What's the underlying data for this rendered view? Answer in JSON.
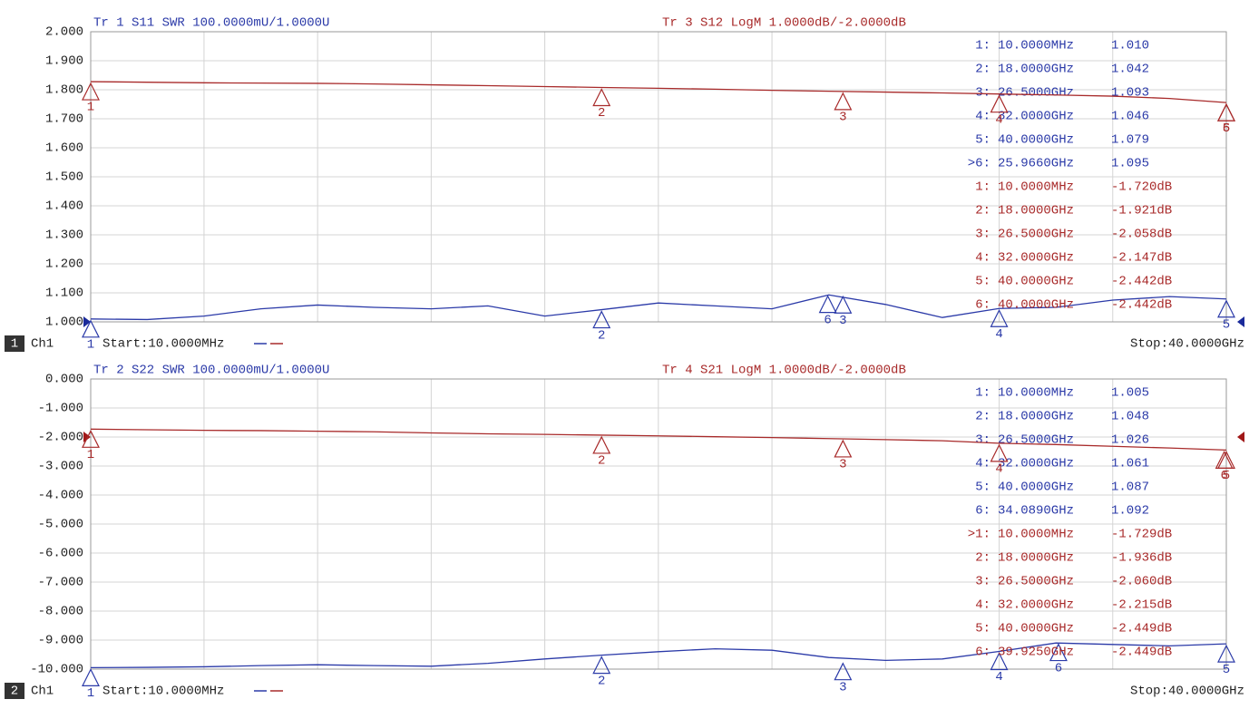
{
  "chart_data": [
    {
      "type": "line",
      "channel": "1",
      "channel_label": "Ch1",
      "start_label": "Start:10.0000MHz",
      "stop_label": "Stop:40.0000GHz",
      "xlim": [
        0.01,
        40
      ],
      "xticks": [
        0.01,
        4,
        8,
        12,
        16,
        20,
        24,
        28,
        32,
        36,
        40
      ],
      "ylim": [
        1.0,
        2.0
      ],
      "yticks": [
        {
          "value": 1.0,
          "label": "1.000"
        },
        {
          "value": 1.1,
          "label": "1.100"
        },
        {
          "value": 1.2,
          "label": "1.200"
        },
        {
          "value": 1.3,
          "label": "1.300"
        },
        {
          "value": 1.4,
          "label": "1.400"
        },
        {
          "value": 1.5,
          "label": "1.500"
        },
        {
          "value": 1.6,
          "label": "1.600"
        },
        {
          "value": 1.7,
          "label": "1.700"
        },
        {
          "value": 1.8,
          "label": "1.800"
        },
        {
          "value": 1.9,
          "label": "1.900"
        },
        {
          "value": 2.0,
          "label": "2.000"
        }
      ],
      "y2lim": [
        -10,
        0
      ],
      "x": [
        0.01,
        2,
        4,
        6,
        8,
        10,
        12,
        14,
        16,
        18,
        20,
        22,
        24,
        26,
        28,
        30,
        32,
        34,
        36,
        38,
        40
      ],
      "series": [
        {
          "name": "Tr 1  S11 SWR 100.0000mU/1.0000U",
          "color": "#2b3aa8",
          "values": [
            1.01,
            1.008,
            1.02,
            1.045,
            1.058,
            1.05,
            1.045,
            1.055,
            1.02,
            1.042,
            1.065,
            1.055,
            1.045,
            1.093,
            1.06,
            1.015,
            1.046,
            1.05,
            1.075,
            1.087,
            1.079
          ],
          "markers": [
            {
              "name": "1",
              "x": 0.01,
              "y": 1.01
            },
            {
              "name": "2",
              "x": 18,
              "y": 1.042
            },
            {
              "name": "3",
              "x": 26.5,
              "y": 1.093
            },
            {
              "name": "4",
              "x": 32,
              "y": 1.046
            },
            {
              "name": "5",
              "x": 40,
              "y": 1.079
            },
            {
              "name": "6",
              "x": 25.966,
              "y": 1.095
            }
          ],
          "readout": [
            {
              "id": "1:",
              "freq": "10.0000MHz",
              "reading": "1.010"
            },
            {
              "id": "2:",
              "freq": "18.0000GHz",
              "reading": "1.042"
            },
            {
              "id": "3:",
              "freq": "26.5000GHz",
              "reading": "1.093"
            },
            {
              "id": "4:",
              "freq": "32.0000GHz",
              "reading": "1.046"
            },
            {
              "id": "5:",
              "freq": "40.0000GHz",
              "reading": "1.079"
            },
            {
              "id": ">6:",
              "freq": "25.9660GHz",
              "reading": "1.095"
            }
          ]
        },
        {
          "name": "Tr 3  S12 LogM 1.0000dB/-2.0000dB",
          "color": "#a82a2a",
          "axis": "y2",
          "values": [
            -1.72,
            -1.74,
            -1.76,
            -1.77,
            -1.78,
            -1.8,
            -1.83,
            -1.86,
            -1.89,
            -1.921,
            -1.95,
            -1.98,
            -2.02,
            -2.05,
            -2.08,
            -2.11,
            -2.147,
            -2.18,
            -2.22,
            -2.3,
            -2.442
          ],
          "markers": [
            {
              "name": "1",
              "x": 0.01,
              "y": -1.72
            },
            {
              "name": "2",
              "x": 18,
              "y": -1.921
            },
            {
              "name": "3",
              "x": 26.5,
              "y": -2.058
            },
            {
              "name": "4",
              "x": 32,
              "y": -2.147
            },
            {
              "name": "5",
              "x": 40,
              "y": -2.442
            },
            {
              "name": "6",
              "x": 40,
              "y": -2.442
            }
          ],
          "readout": [
            {
              "id": "1:",
              "freq": "10.0000MHz",
              "reading": "-1.720dB"
            },
            {
              "id": "2:",
              "freq": "18.0000GHz",
              "reading": "-1.921dB"
            },
            {
              "id": "3:",
              "freq": "26.5000GHz",
              "reading": "-2.058dB"
            },
            {
              "id": "4:",
              "freq": "32.0000GHz",
              "reading": "-2.147dB"
            },
            {
              "id": "5:",
              "freq": "40.0000GHz",
              "reading": "-2.442dB"
            },
            {
              "id": "6:",
              "freq": "40.0000GHz",
              "reading": "-2.442dB"
            }
          ]
        }
      ]
    },
    {
      "type": "line",
      "channel": "2",
      "channel_label": "Ch1",
      "start_label": "Start:10.0000MHz",
      "stop_label": "Stop:40.0000GHz",
      "xlim": [
        0.01,
        40
      ],
      "xticks": [
        0.01,
        4,
        8,
        12,
        16,
        20,
        24,
        28,
        32,
        36,
        40
      ],
      "ylim": [
        -10,
        0
      ],
      "yticks": [
        {
          "value": -10,
          "label": "-10.000"
        },
        {
          "value": -9,
          "label": "-9.000"
        },
        {
          "value": -8,
          "label": "-8.000"
        },
        {
          "value": -7,
          "label": "-7.000"
        },
        {
          "value": -6,
          "label": "-6.000"
        },
        {
          "value": -5,
          "label": "-5.000"
        },
        {
          "value": -4,
          "label": "-4.000"
        },
        {
          "value": -3,
          "label": "-3.000"
        },
        {
          "value": -2,
          "label": "-2.000"
        },
        {
          "value": -1,
          "label": "-1.000"
        },
        {
          "value": 0,
          "label": "0.000"
        }
      ],
      "y2lim": [
        1.0,
        2.0
      ],
      "x": [
        0.01,
        2,
        4,
        6,
        8,
        10,
        12,
        14,
        16,
        18,
        20,
        22,
        24,
        26,
        28,
        30,
        32,
        34,
        36,
        38,
        40
      ],
      "series": [
        {
          "name": "Tr 2  S22 SWR 100.0000mU/1.0000U",
          "color": "#2b3aa8",
          "axis": "y2",
          "values": [
            1.005,
            1.006,
            1.008,
            1.012,
            1.015,
            1.012,
            1.01,
            1.02,
            1.035,
            1.048,
            1.06,
            1.07,
            1.065,
            1.04,
            1.03,
            1.035,
            1.061,
            1.09,
            1.085,
            1.08,
            1.087
          ],
          "markers": [
            {
              "name": "1",
              "x": 0.01,
              "y": 1.005
            },
            {
              "name": "2",
              "x": 18,
              "y": 1.048
            },
            {
              "name": "3",
              "x": 26.5,
              "y": 1.026
            },
            {
              "name": "4",
              "x": 32,
              "y": 1.061
            },
            {
              "name": "5",
              "x": 40,
              "y": 1.087
            },
            {
              "name": "6",
              "x": 34.089,
              "y": 1.092
            }
          ],
          "readout": [
            {
              "id": "1:",
              "freq": "10.0000MHz",
              "reading": "1.005"
            },
            {
              "id": "2:",
              "freq": "18.0000GHz",
              "reading": "1.048"
            },
            {
              "id": "3:",
              "freq": "26.5000GHz",
              "reading": "1.026"
            },
            {
              "id": "4:",
              "freq": "32.0000GHz",
              "reading": "1.061"
            },
            {
              "id": "5:",
              "freq": "40.0000GHz",
              "reading": "1.087"
            },
            {
              "id": "6:",
              "freq": "34.0890GHz",
              "reading": "1.092"
            }
          ]
        },
        {
          "name": "Tr 4  S21 LogM 1.0000dB/-2.0000dB",
          "color": "#a82a2a",
          "values": [
            -1.729,
            -1.75,
            -1.77,
            -1.78,
            -1.8,
            -1.82,
            -1.86,
            -1.89,
            -1.91,
            -1.936,
            -1.96,
            -1.99,
            -2.02,
            -2.055,
            -2.09,
            -2.13,
            -2.215,
            -2.26,
            -2.32,
            -2.38,
            -2.449
          ],
          "markers": [
            {
              "name": "1",
              "x": 0.01,
              "y": -1.729
            },
            {
              "name": "2",
              "x": 18,
              "y": -1.936
            },
            {
              "name": "3",
              "x": 26.5,
              "y": -2.06
            },
            {
              "name": "4",
              "x": 32,
              "y": -2.215
            },
            {
              "name": "5",
              "x": 40,
              "y": -2.449
            },
            {
              "name": "6",
              "x": 39.925,
              "y": -2.449
            }
          ],
          "readout": [
            {
              "id": ">1:",
              "freq": "10.0000MHz",
              "reading": "-1.729dB"
            },
            {
              "id": "2:",
              "freq": "18.0000GHz",
              "reading": "-1.936dB"
            },
            {
              "id": "3:",
              "freq": "26.5000GHz",
              "reading": "-2.060dB"
            },
            {
              "id": "4:",
              "freq": "32.0000GHz",
              "reading": "-2.215dB"
            },
            {
              "id": "5:",
              "freq": "40.0000GHz",
              "reading": "-2.449dB"
            },
            {
              "id": "6:",
              "freq": "39.9250GHz",
              "reading": "-2.449dB"
            }
          ]
        }
      ]
    }
  ]
}
